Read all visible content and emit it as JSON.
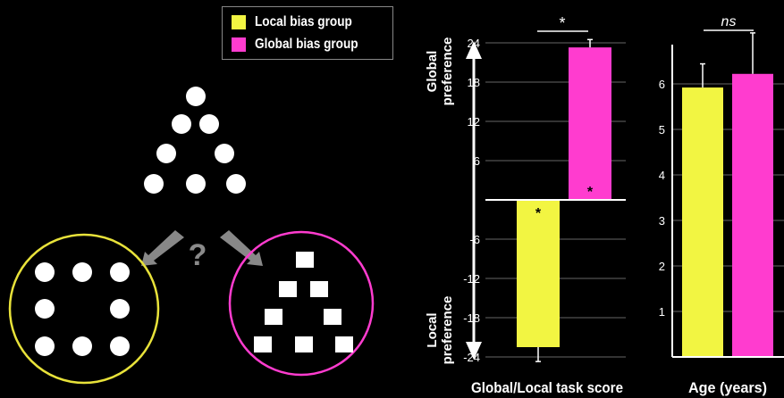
{
  "colors": {
    "local": "#f2f542",
    "global": "#ff3ccf",
    "background": "#000000",
    "foreground": "#ffffff"
  },
  "legend": {
    "items": [
      {
        "label": "Local bias group",
        "color": "#f2f542"
      },
      {
        "label": "Global bias group",
        "color": "#ff3ccf"
      }
    ]
  },
  "stimulus": {
    "question_mark": "?",
    "top_shape": "circle-triangle",
    "left_choice": "circle-ring",
    "right_choice": "square-triangle"
  },
  "chart_data": [
    {
      "type": "bar",
      "categories": [
        "Local bias group",
        "Global bias group"
      ],
      "values": [
        -22.5,
        23.3
      ],
      "error": [
        2.2,
        1.2
      ],
      "colors": [
        "#f2f542",
        "#ff3ccf"
      ],
      "ylim": [
        -24,
        24
      ],
      "yticks": [
        -24,
        -18,
        -12,
        -6,
        6,
        12,
        18,
        24
      ],
      "xlabel": "Global/Local task score",
      "ylabel_top": "Global preference",
      "ylabel_bottom": "Local preference",
      "significance": "*",
      "bar_markers": [
        "*",
        "*"
      ],
      "grid": true
    },
    {
      "type": "bar",
      "categories": [
        "Local bias group",
        "Global bias group"
      ],
      "values": [
        5.92,
        6.22
      ],
      "error": [
        0.52,
        0.9
      ],
      "colors": [
        "#f2f542",
        "#ff3ccf"
      ],
      "ylim": [
        0,
        6.8
      ],
      "yticks": [
        1,
        2,
        3,
        4,
        5,
        6
      ],
      "xlabel": "Age (years)",
      "significance": "ns",
      "grid": true
    }
  ]
}
